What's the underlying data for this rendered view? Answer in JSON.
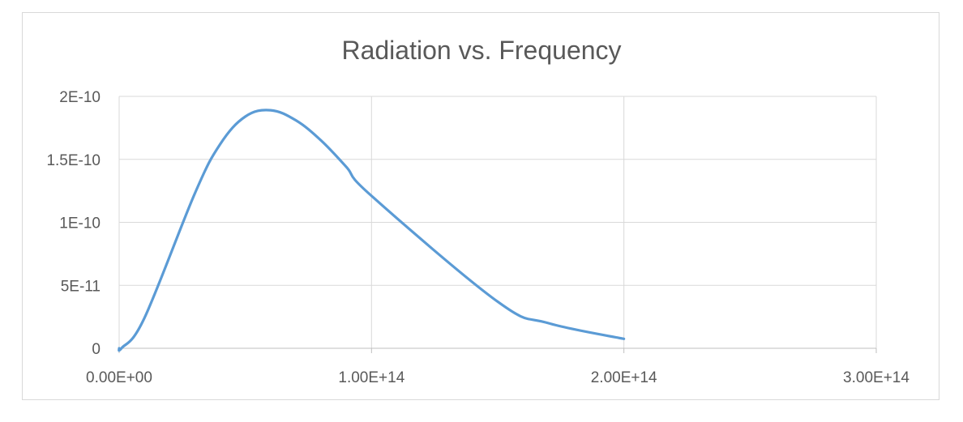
{
  "chart_data": {
    "type": "scatter",
    "title": "Radiation vs. Frequency",
    "xlabel": "",
    "ylabel": "",
    "xlim": [
      0,
      300000000000000.0
    ],
    "ylim": [
      0,
      2e-10
    ],
    "x_ticks": [
      {
        "value": 0,
        "label": "0.00E+00"
      },
      {
        "value": 100000000000000.0,
        "label": "1.00E+14"
      },
      {
        "value": 200000000000000.0,
        "label": "2.00E+14"
      },
      {
        "value": 300000000000000.0,
        "label": "3.00E+14"
      }
    ],
    "y_ticks": [
      {
        "value": 0,
        "label": "0"
      },
      {
        "value": 5e-11,
        "label": "5E-11"
      },
      {
        "value": 1e-10,
        "label": "1E-10"
      },
      {
        "value": 1.5e-10,
        "label": "1.5E-10"
      },
      {
        "value": 2e-10,
        "label": "2E-10"
      }
    ],
    "grid": true,
    "legend": "none",
    "series": [
      {
        "color": "#5b9bd5",
        "points": [
          {
            "x": 0,
            "y": 0
          },
          {
            "x": 1000000000000.0,
            "y": 2e-13
          },
          {
            "x": 10000000000000.0,
            "y": 2.4e-11
          },
          {
            "x": 30000000000000.0,
            "y": 1.23e-10
          },
          {
            "x": 40000000000000.0,
            "y": 1.62e-10
          },
          {
            "x": 50000000000000.0,
            "y": 1.84e-10
          },
          {
            "x": 60000000000000.0,
            "y": 1.89e-10
          },
          {
            "x": 70000000000000.0,
            "y": 1.81e-10
          },
          {
            "x": 80000000000000.0,
            "y": 1.65e-10
          },
          {
            "x": 90000000000000.0,
            "y": 1.44e-10
          },
          {
            "x": 100000000000000.0,
            "y": 1.21e-10
          },
          {
            "x": 150000000000000.0,
            "y": 3.7e-11
          },
          {
            "x": 170000000000000.0,
            "y": 2e-11
          },
          {
            "x": 200000000000000.0,
            "y": 7.5e-12
          }
        ]
      }
    ]
  }
}
